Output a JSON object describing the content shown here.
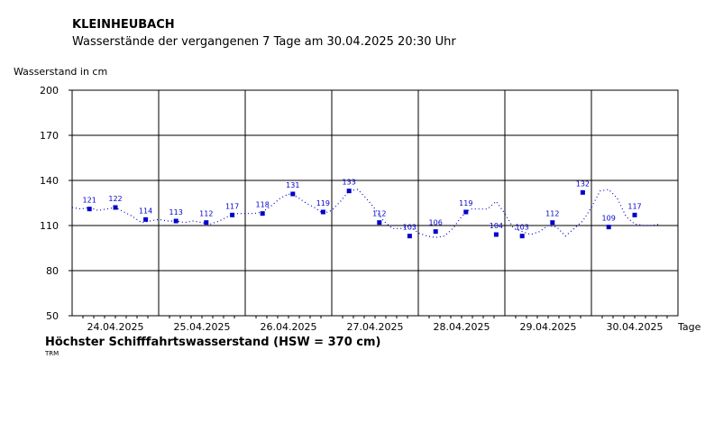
{
  "header": {
    "station": "KLEINHEUBACH",
    "subtitle": "Wasserstände der vergangenen 7 Tage am 30.04.2025 20:30 Uhr"
  },
  "footer": {
    "title": "Höchster Schifffahrtswasserstand (HSW = 370 cm)",
    "mark": "TRM"
  },
  "chart_data": {
    "type": "line",
    "ylabel": "Wasserstand in cm",
    "xlabel": "Tage",
    "ylim": [
      50,
      200
    ],
    "yticks": [
      50,
      80,
      110,
      140,
      170,
      200
    ],
    "xlim": [
      0,
      7
    ],
    "days": [
      "24.04.2025",
      "25.04.2025",
      "26.04.2025",
      "27.04.2025",
      "28.04.2025",
      "29.04.2025",
      "30.04.2025"
    ],
    "grid": true,
    "series_color": "#0000cc",
    "series": [
      {
        "x": [
          0.0,
          0.1,
          0.2,
          0.3,
          0.4,
          0.5,
          0.6,
          0.7,
          0.8,
          0.9,
          1.0,
          1.1,
          1.2,
          1.3,
          1.4,
          1.5,
          1.6,
          1.7,
          1.8,
          1.9,
          2.0,
          2.1,
          2.2,
          2.3,
          2.4,
          2.5,
          2.6,
          2.7,
          2.8,
          2.9,
          3.0,
          3.1,
          3.2,
          3.3,
          3.4,
          3.5,
          3.6,
          3.7,
          3.8,
          3.9,
          4.0,
          4.1,
          4.2,
          4.3,
          4.4,
          4.5,
          4.6,
          4.7,
          4.8,
          4.9,
          5.0,
          5.1,
          5.2,
          5.3,
          5.4,
          5.5,
          5.6,
          5.7,
          5.8,
          5.9,
          6.0,
          6.1,
          6.2,
          6.3,
          6.4,
          6.5,
          6.6,
          6.7,
          6.8
        ],
        "y": [
          122,
          121,
          122,
          120,
          121,
          122,
          119,
          116,
          112,
          113,
          114,
          113,
          113,
          112,
          113,
          112,
          111,
          113,
          116,
          118,
          118,
          118,
          119,
          123,
          128,
          131,
          129,
          125,
          122,
          118,
          120,
          126,
          133,
          134,
          128,
          121,
          113,
          108,
          108,
          110,
          105,
          103,
          102,
          103,
          108,
          116,
          121,
          121,
          121,
          126,
          118,
          108,
          106,
          104,
          106,
          110,
          109,
          103,
          108,
          113,
          122,
          133,
          134,
          128,
          116,
          111,
          110,
          110,
          111
        ]
      }
    ],
    "markers": [
      {
        "x": 0.2,
        "y": 121
      },
      {
        "x": 0.5,
        "y": 122
      },
      {
        "x": 0.85,
        "y": 114
      },
      {
        "x": 1.2,
        "y": 113
      },
      {
        "x": 1.55,
        "y": 112
      },
      {
        "x": 1.85,
        "y": 117
      },
      {
        "x": 2.2,
        "y": 118
      },
      {
        "x": 2.55,
        "y": 131
      },
      {
        "x": 2.9,
        "y": 119
      },
      {
        "x": 3.2,
        "y": 133
      },
      {
        "x": 3.55,
        "y": 112
      },
      {
        "x": 3.9,
        "y": 103
      },
      {
        "x": 4.2,
        "y": 106
      },
      {
        "x": 4.55,
        "y": 119
      },
      {
        "x": 4.9,
        "y": 104
      },
      {
        "x": 5.2,
        "y": 103
      },
      {
        "x": 5.55,
        "y": 112
      },
      {
        "x": 5.9,
        "y": 132
      },
      {
        "x": 6.2,
        "y": 109
      },
      {
        "x": 6.5,
        "y": 117
      }
    ]
  }
}
